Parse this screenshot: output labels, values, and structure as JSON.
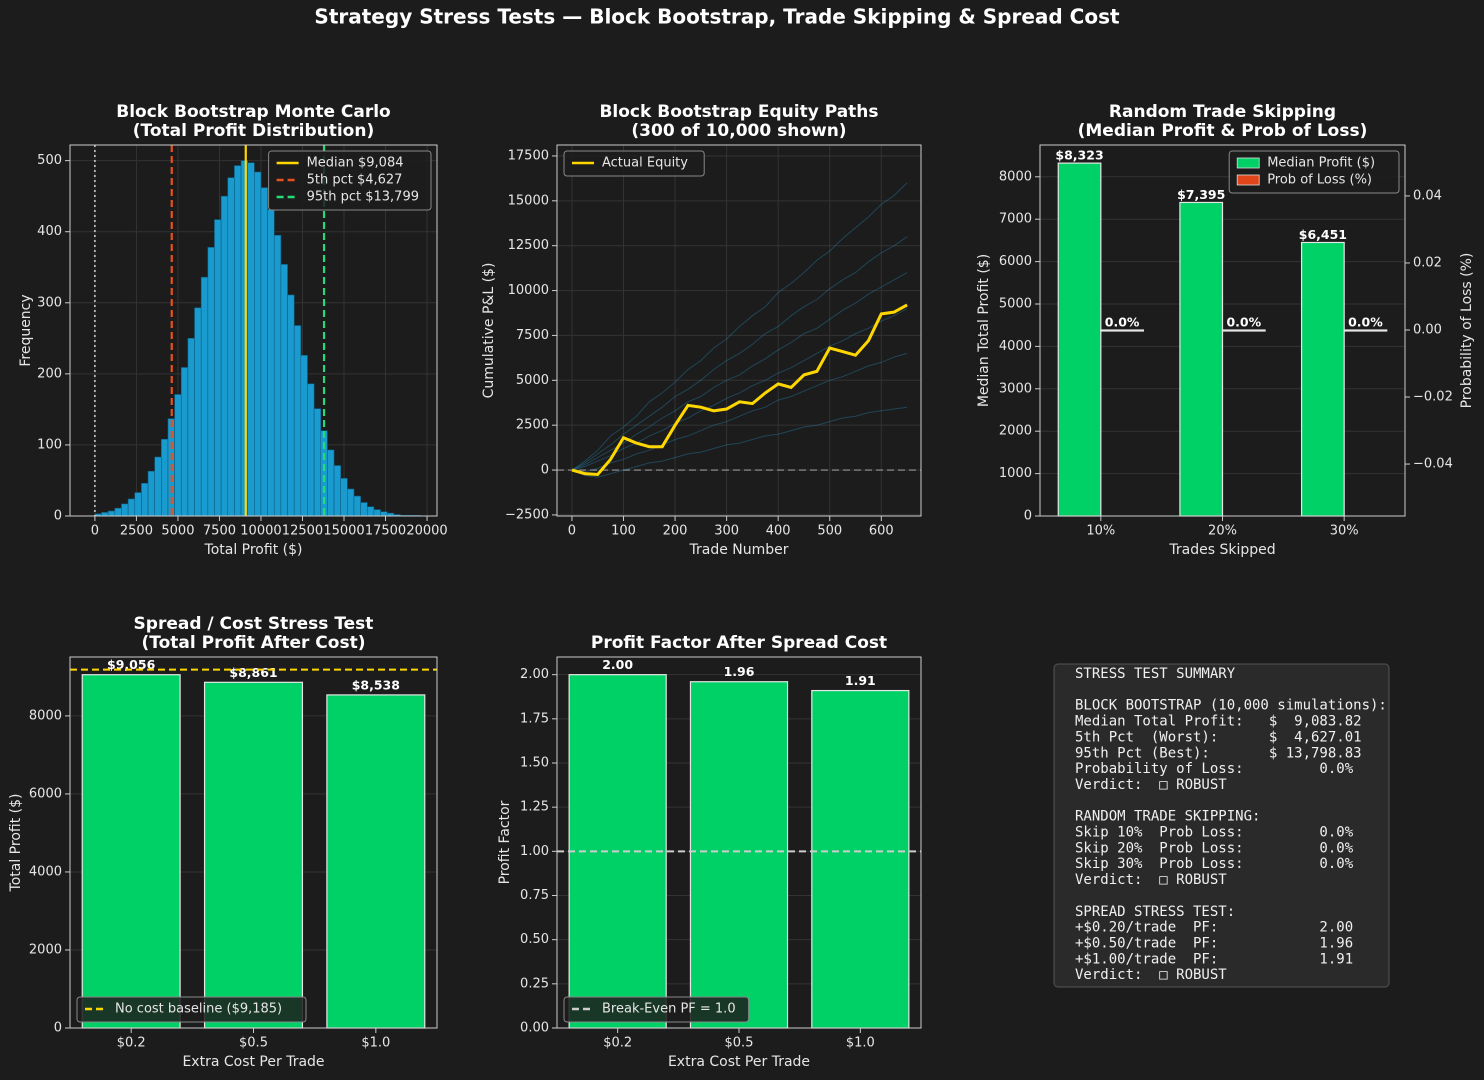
{
  "title": "Strategy Stress Tests — Block Bootstrap, Trade Skipping & Spread Cost",
  "chart_data": [
    {
      "type": "histogram",
      "title": [
        "Block Bootstrap Monte Carlo",
        "(Total Profit Distribution)"
      ],
      "xlabel": "Total Profit ($)",
      "ylabel": "Frequency",
      "bins": [
        0,
        400,
        800,
        1200,
        1600,
        2000,
        2400,
        2800,
        3200,
        3600,
        4000,
        4400,
        4800,
        5200,
        5600,
        6000,
        6400,
        6800,
        7200,
        7600,
        8000,
        8400,
        8800,
        9200,
        9600,
        10000,
        10400,
        10800,
        11200,
        11600,
        12000,
        12400,
        12800,
        13200,
        13600,
        14000,
        14400,
        14800,
        15200,
        15600,
        16000,
        16400,
        16800,
        17200,
        17600,
        18000,
        18400,
        18800,
        19200,
        19600,
        20000
      ],
      "counts": [
        3,
        5,
        7,
        11,
        17,
        24,
        33,
        46,
        63,
        83,
        108,
        137,
        171,
        209,
        250,
        293,
        336,
        378,
        417,
        450,
        476,
        493,
        500,
        497,
        484,
        462,
        431,
        395,
        354,
        311,
        268,
        226,
        186,
        151,
        120,
        93,
        71,
        53,
        38,
        28,
        19,
        13,
        9,
        6,
        4,
        2,
        1,
        1,
        1,
        0
      ],
      "color": "#1a9bd0",
      "xlim": [
        -1500,
        20600
      ],
      "xticks": [
        0,
        2500,
        5000,
        7500,
        10000,
        12500,
        15000,
        17500,
        20000
      ],
      "ylim": [
        0,
        522
      ],
      "yticks": [
        0,
        100,
        200,
        300,
        400,
        500
      ],
      "grid": true,
      "legend": "upper right",
      "vlines": [
        {
          "value": 0,
          "color": "#ffffff",
          "dash": "dotted"
        },
        {
          "name": "Median  $9,084",
          "value": 9084,
          "color": "#ffd700",
          "dash": "solid"
        },
        {
          "name": "5th pct  $4,627",
          "value": 4627,
          "color": "#e8501e",
          "dash": "dashed"
        },
        {
          "name": "95th pct $13,799",
          "value": 13799,
          "color": "#22dd77",
          "dash": "dashed"
        }
      ]
    },
    {
      "type": "line",
      "title": [
        "Block Bootstrap Equity Paths",
        "(300 of 10,000 shown)"
      ],
      "xlabel": "Trade Number",
      "ylabel": "Cumulative P&L ($)",
      "x": [
        0,
        25,
        50,
        75,
        100,
        125,
        150,
        175,
        200,
        225,
        250,
        275,
        300,
        325,
        350,
        375,
        400,
        425,
        450,
        475,
        500,
        525,
        550,
        575,
        600,
        625,
        650
      ],
      "series": [
        {
          "color": "#29a8e0",
          "opacity": 0.3,
          "values": [
            0,
            500,
            1100,
            1900,
            2400,
            3000,
            3800,
            4300,
            4900,
            5600,
            6100,
            6800,
            7300,
            8000,
            8600,
            9100,
            9900,
            10400,
            11000,
            11700,
            12200,
            12900,
            13500,
            14100,
            14800,
            15300,
            16000
          ]
        },
        {
          "color": "#29a8e0",
          "opacity": 0.3,
          "values": [
            0,
            400,
            900,
            1400,
            2000,
            2500,
            3000,
            3500,
            4100,
            4500,
            5000,
            5600,
            6100,
            6500,
            7000,
            7600,
            8000,
            8600,
            9100,
            9500,
            10100,
            10600,
            11000,
            11600,
            12100,
            12500,
            13000
          ]
        },
        {
          "color": "#29a8e0",
          "opacity": 0.3,
          "values": [
            0,
            300,
            700,
            1100,
            1500,
            2000,
            2400,
            2900,
            3300,
            3800,
            4100,
            4600,
            5000,
            5300,
            5800,
            6200,
            6700,
            7100,
            7600,
            7900,
            8400,
            8900,
            9300,
            9800,
            10200,
            10600,
            11000
          ]
        },
        {
          "color": "#29a8e0",
          "opacity": 0.3,
          "values": [
            0,
            200,
            500,
            800,
            1200,
            1500,
            1900,
            2200,
            2600,
            2900,
            3300,
            3600,
            4000,
            4300,
            4700,
            5000,
            5400,
            5700,
            6100,
            6500,
            6900,
            7200,
            7600,
            7900,
            8300,
            8600,
            9000
          ]
        },
        {
          "color": "#29a8e0",
          "opacity": 0.3,
          "values": [
            0,
            -100,
            100,
            400,
            600,
            900,
            1100,
            1400,
            1700,
            1900,
            2200,
            2500,
            2700,
            3000,
            3300,
            3500,
            3900,
            4100,
            4400,
            4700,
            5000,
            5200,
            5500,
            5800,
            6000,
            6300,
            6500
          ]
        },
        {
          "color": "#29a8e0",
          "opacity": 0.3,
          "values": [
            0,
            -300,
            -400,
            -200,
            0,
            200,
            400,
            500,
            700,
            900,
            1000,
            1200,
            1400,
            1500,
            1700,
            1900,
            2000,
            2200,
            2400,
            2500,
            2700,
            2900,
            3000,
            3200,
            3300,
            3400,
            3500
          ]
        },
        {
          "name": "Actual Equity",
          "color": "#ffd700",
          "width": 3,
          "values": [
            0,
            -200,
            -250,
            600,
            1800,
            1500,
            1300,
            1300,
            2500,
            3600,
            3500,
            3300,
            3400,
            3800,
            3700,
            4300,
            4800,
            4600,
            5300,
            5500,
            6800,
            6600,
            6400,
            7200,
            8700,
            8800,
            9200
          ]
        }
      ],
      "hlines": [
        {
          "value": 0,
          "color": "#999999",
          "dash": "dashed"
        }
      ],
      "xlim": [
        -29,
        677
      ],
      "xticks": [
        0,
        100,
        200,
        300,
        400,
        500,
        600
      ],
      "ylim": [
        -2560,
        18110
      ],
      "yticks": [
        {
          "value": -2500,
          "label": "−2500"
        },
        0,
        2500,
        5000,
        7500,
        10000,
        12500,
        15000,
        17500
      ],
      "grid": true,
      "legend": "upper left"
    },
    {
      "type": "bar_dual",
      "title": [
        "Random Trade Skipping",
        "(Median Profit & Prob of Loss)"
      ],
      "xlabel": "Trades Skipped",
      "ylabel": "Median Total Profit ($)",
      "y2label": "Probability of Loss (%)",
      "categories": [
        "10%",
        "20%",
        "30%"
      ],
      "series": [
        {
          "name": "Median Profit ($)",
          "color": "#00d166",
          "values": [
            8323,
            7395,
            6451
          ],
          "value_labels": [
            "$8,323",
            "$7,395",
            "$6,451"
          ]
        },
        {
          "name": "Prob of Loss (%)",
          "color": "#e0461a",
          "axis": "y2",
          "values": [
            0,
            0,
            0
          ],
          "value_labels": [
            "0.0%",
            "0.0%",
            "0.0%"
          ]
        }
      ],
      "ylim": [
        0,
        8750
      ],
      "yticks": [
        0,
        1000,
        2000,
        3000,
        4000,
        5000,
        6000,
        7000,
        8000
      ],
      "y2lim": [
        -0.0555,
        0.0552
      ],
      "y2ticks": [
        {
          "value": -0.04,
          "label": "−0.04"
        },
        {
          "value": -0.02,
          "label": "−0.02"
        },
        {
          "value": 0,
          "label": "0.00"
        },
        0.02,
        0.04
      ],
      "ycolor": "#00d166",
      "y2color": "#e8501e",
      "grid": true,
      "legend": "upper right"
    },
    {
      "type": "bar",
      "title": [
        "Spread / Cost Stress Test",
        "(Total Profit After Cost)"
      ],
      "xlabel": "Extra Cost Per Trade",
      "ylabel": "Total Profit ($)",
      "categories": [
        "$0.2",
        "$0.5",
        "$1.0"
      ],
      "values": [
        9056,
        8861,
        8538
      ],
      "value_labels": [
        "$9,056",
        "$8,861",
        "$8,538"
      ],
      "color": "#00d166",
      "hlines": [
        {
          "name": "No cost baseline ($9,185)",
          "value": 9185,
          "color": "#ffd700",
          "dash": "dashed"
        }
      ],
      "ylim": [
        0,
        9510
      ],
      "yticks": [
        0,
        2000,
        4000,
        6000,
        8000
      ],
      "grid": true,
      "legend": "lower left"
    },
    {
      "type": "bar",
      "title": [
        "Profit Factor After Spread Cost"
      ],
      "xlabel": "Extra Cost Per Trade",
      "ylabel": "Profit Factor",
      "categories": [
        "$0.2",
        "$0.5",
        "$1.0"
      ],
      "values": [
        2,
        1.96,
        1.91
      ],
      "value_labels": [
        "2.00",
        "1.96",
        "1.91"
      ],
      "color": "#00d166",
      "hlines": [
        {
          "name": "Break-Even PF = 1.0",
          "value": 1,
          "color": "#cccccc",
          "dash": "dashed"
        }
      ],
      "ylim": [
        0,
        2.1
      ],
      "yticks": [
        {
          "value": 0,
          "label": "0.00"
        },
        {
          "value": 0.25,
          "label": "0.25"
        },
        {
          "value": 0.5,
          "label": "0.50"
        },
        {
          "value": 0.75,
          "label": "0.75"
        },
        {
          "value": 1,
          "label": "1.00"
        },
        {
          "value": 1.25,
          "label": "1.25"
        },
        {
          "value": 1.5,
          "label": "1.50"
        },
        {
          "value": 1.75,
          "label": "1.75"
        },
        {
          "value": 2,
          "label": "2.00"
        }
      ],
      "grid": true,
      "legend": "lower left"
    }
  ],
  "summary": {
    "blocks": [
      [
        "STRESS TEST SUMMARY"
      ],
      [
        "BLOCK BOOTSTRAP (10,000 simulations):",
        "Median Total Profit:   $  9,083.82",
        "5th Pct  (Worst):      $  4,627.01",
        "95th Pct (Best):       $ 13,798.83",
        "Probability of Loss:         0.0%",
        "Verdict:  □ ROBUST"
      ],
      [
        "RANDOM TRADE SKIPPING:",
        "Skip 10%  Prob Loss:         0.0%",
        "Skip 20%  Prob Loss:         0.0%",
        "Skip 30%  Prob Loss:         0.0%",
        "Verdict:  □ ROBUST"
      ],
      [
        "SPREAD STRESS TEST:",
        "+$0.20/trade  PF:            2.00",
        "+$0.50/trade  PF:            1.96",
        "+$1.00/trade  PF:            1.91",
        "Verdict:  □ ROBUST"
      ]
    ]
  }
}
